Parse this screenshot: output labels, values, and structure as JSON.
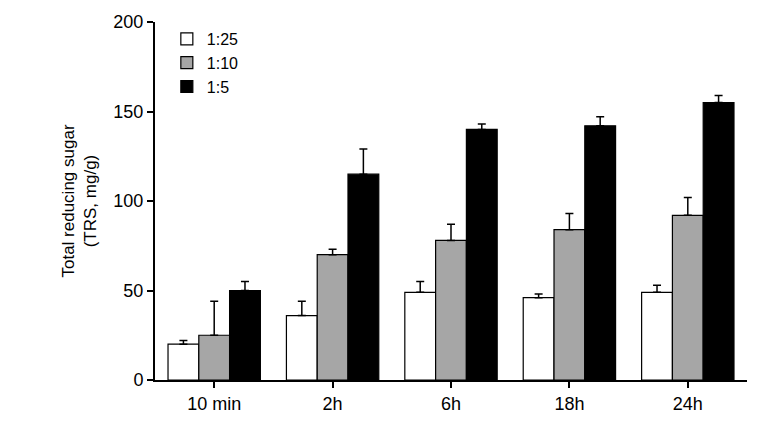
{
  "chart_data": {
    "type": "bar",
    "y_label": "Total reducing sugar\n(TRS, mg/g)",
    "categories": [
      "10 min",
      "2h",
      "6h",
      "18h",
      "24h"
    ],
    "series": [
      {
        "name": "1:25",
        "color": "#ffffff",
        "values": [
          20,
          36,
          49,
          46,
          49
        ],
        "errors": [
          2,
          8,
          6,
          2,
          4
        ]
      },
      {
        "name": "1:10",
        "color": "#a6a6a6",
        "values": [
          25,
          70,
          78,
          84,
          92
        ],
        "errors": [
          19,
          3,
          9,
          9,
          10
        ]
      },
      {
        "name": "1:5",
        "color": "#000000",
        "values": [
          50,
          115,
          140,
          142,
          155
        ],
        "errors": [
          5,
          14,
          3,
          5,
          4
        ]
      }
    ],
    "ylim": [
      0,
      200
    ],
    "yticks": [
      0,
      50,
      100,
      150,
      200
    ],
    "grid": false,
    "legend": "top-left"
  }
}
